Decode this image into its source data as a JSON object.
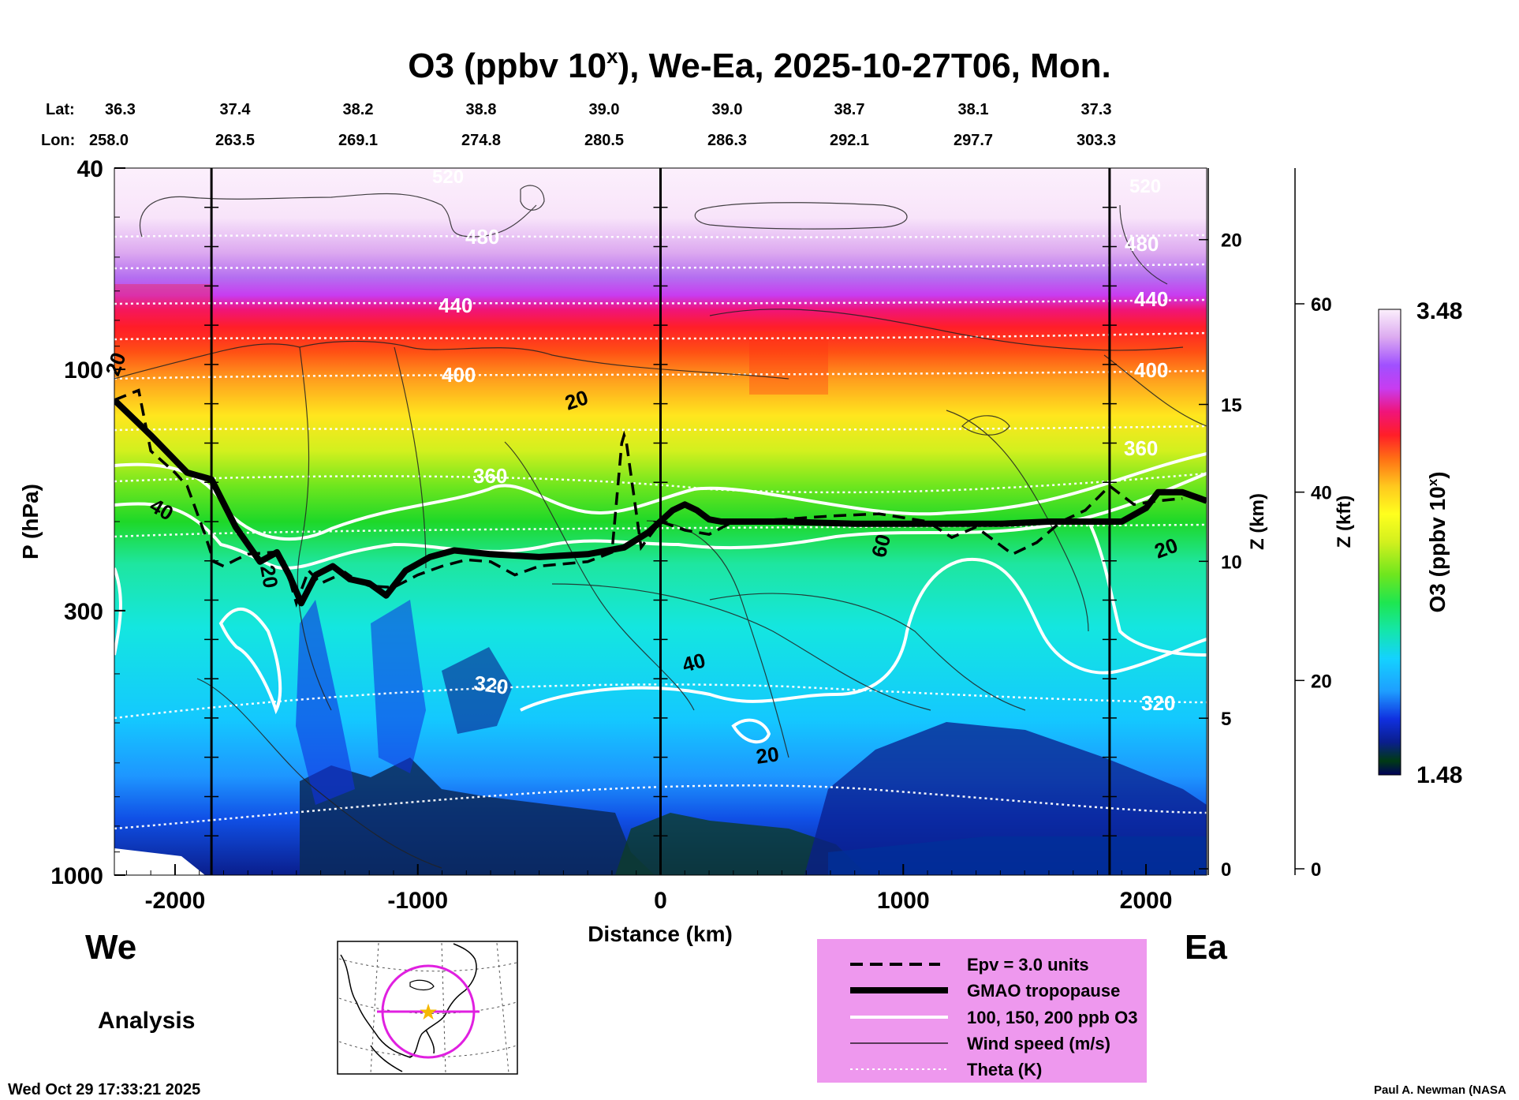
{
  "figure": {
    "title_main": "O3 (ppbv 10",
    "title_sup": "x",
    "title_rest": "), We-Ea, 2025-10-27T06, Mon.",
    "left_label": "We",
    "right_label": "Ea",
    "analysis_label": "Analysis",
    "timestamp": "Wed Oct 29 17:33:21 2025",
    "credit": "Paul A. Newman (NASA",
    "lat_label": "Lat:",
    "lon_label": "Lon:",
    "lat_values": [
      "36.3",
      "37.4",
      "38.2",
      "38.8",
      "39.0",
      "39.0",
      "38.7",
      "38.1",
      "37.3"
    ],
    "lon_values": [
      "258.0",
      "263.5",
      "269.1",
      "274.8",
      "280.5",
      "286.3",
      "292.1",
      "297.7",
      "303.3"
    ]
  },
  "chart_data": {
    "type": "heatmap",
    "title": "O3 (ppbv 10^x), We-Ea, 2025-10-27T06, Mon.",
    "xlabel": "Distance (km)",
    "ylabel": "P (hPa)",
    "xlim": [
      -2250,
      2250
    ],
    "ylim_hpa": [
      1000,
      40
    ],
    "x_ticks": [
      -2000,
      -1000,
      0,
      1000,
      2000
    ],
    "x_tick_labels": [
      "-2000",
      "-1000",
      "0",
      "1000",
      "2000"
    ],
    "y_ticks": [
      40,
      100,
      300,
      1000
    ],
    "y_tick_labels": [
      "40",
      "100",
      "300",
      "1000"
    ],
    "z_km_label": "Z (km)",
    "z_km_ticks": [
      0,
      5,
      10,
      15,
      20
    ],
    "z_km_tick_labels": [
      "0",
      "5",
      "10",
      "15",
      "20"
    ],
    "z_kft_label": "Z (kft)",
    "z_kft_ticks": [
      0,
      20,
      40,
      60
    ],
    "z_kft_tick_labels": [
      "0",
      "20",
      "40",
      "60"
    ],
    "colorbar": {
      "label": "O3 (ppbv 10",
      "label_sup": "x",
      "label_end": ")",
      "min": 1.48,
      "max": 3.48,
      "min_label": "1.48",
      "max_label": "3.48",
      "colors": [
        "#00005a",
        "#003a14",
        "#104418",
        "#0a1e8c",
        "#1030e0",
        "#1c64ff",
        "#1e9eff",
        "#14d2ff",
        "#14ebe0",
        "#14e6aa",
        "#1ee650",
        "#32d21e",
        "#6ee61e",
        "#aaf01e",
        "#d2f01e",
        "#ffff1e",
        "#ffe61e",
        "#ffc81e",
        "#ffa01e",
        "#ff6e14",
        "#ff3214",
        "#f01432",
        "#f0147a",
        "#e628c8",
        "#c83cf0",
        "#a050ff",
        "#b46ef0",
        "#c88cf0",
        "#dcaaf0",
        "#ecc8f4",
        "#f4dcf8",
        "#fcf0fc"
      ]
    },
    "theta_labels_K": [
      "520",
      "480",
      "440",
      "400",
      "360",
      "320"
    ],
    "wind_labels_ms": [
      "20",
      "40",
      "60"
    ],
    "section_markers_km": [
      -1850,
      0,
      1850
    ],
    "tropopause_profile": {
      "x_km": [
        -2250,
        -2100,
        -1950,
        -1850,
        -1750,
        -1650,
        -1580,
        -1530,
        -1480,
        -1420,
        -1350,
        -1280,
        -1200,
        -1130,
        -1050,
        -950,
        -850,
        -700,
        -500,
        -300,
        -150,
        -50,
        50,
        100,
        150,
        200,
        250,
        300,
        500,
        800,
        1100,
        1400,
        1600,
        1800,
        1900,
        2000,
        2050,
        2150,
        2250
      ],
      "p_hpa": [
        115,
        135,
        160,
        165,
        205,
        240,
        230,
        255,
        290,
        255,
        245,
        260,
        265,
        280,
        250,
        235,
        228,
        232,
        235,
        232,
        225,
        210,
        190,
        185,
        190,
        198,
        200,
        200,
        200,
        202,
        202,
        202,
        200,
        200,
        200,
        188,
        175,
        175,
        182
      ]
    },
    "epv_profile": {
      "x_km": [
        -2250,
        -2150,
        -2100,
        -2000,
        -1950,
        -1880,
        -1840,
        -1800,
        -1750,
        -1700,
        -1600,
        -1550,
        -1500,
        -1450,
        -1400,
        -1300,
        -1250,
        -1200,
        -1100,
        -1000,
        -900,
        -800,
        -700,
        -600,
        -550,
        -500,
        -300,
        -200,
        -160,
        -150,
        -140,
        -80,
        0,
        100,
        200,
        300,
        500,
        700,
        900,
        1100,
        1200,
        1300,
        1450,
        1550,
        1650,
        1750,
        1850,
        1950,
        2050,
        2150
      ],
      "p_hpa": [
        115,
        110,
        145,
        160,
        170,
        210,
        240,
        245,
        238,
        232,
        230,
        240,
        290,
        250,
        265,
        252,
        262,
        268,
        270,
        255,
        245,
        238,
        240,
        255,
        250,
        245,
        240,
        230,
        140,
        135,
        140,
        225,
        200,
        208,
        212,
        200,
        198,
        195,
        193,
        200,
        215,
        205,
        232,
        220,
        200,
        190,
        170,
        185,
        182,
        180
      ]
    },
    "legend": {
      "entries": [
        "Epv = 3.0 units",
        "GMAO tropopause",
        "100, 150, 200 ppb O3",
        "Wind speed (m/s)",
        "Theta (K)"
      ],
      "background": "#ee98ee"
    }
  }
}
